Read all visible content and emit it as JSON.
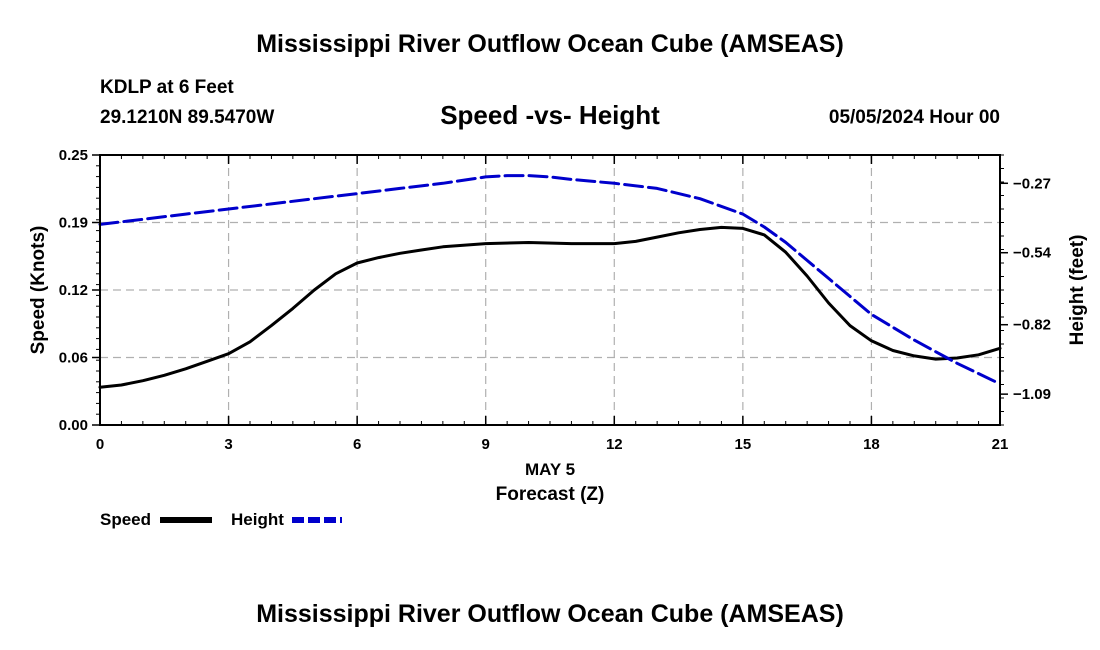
{
  "header": {
    "title": "Mississippi River Outflow Ocean Cube (AMSEAS)",
    "station": "KDLP at 6 Feet",
    "coords": "29.1210N  89.5470W",
    "subtitle": "Speed -vs- Height",
    "datetime": "05/05/2024 Hour 00"
  },
  "footer": {
    "title": "Mississippi River Outflow Ocean Cube (AMSEAS)"
  },
  "colors": {
    "speed": "#000000",
    "height": "#0000cc",
    "grid": "#b0b0b0"
  },
  "chart_data": {
    "type": "line",
    "xlabel": "Forecast (Z)",
    "xsublabel": "MAY 5",
    "ylabel": "Speed (Knots)",
    "y2label": "Height (feet)",
    "xlim": [
      0,
      21
    ],
    "ylim": [
      0,
      0.25
    ],
    "y2lim": [
      -1.21,
      -0.16
    ],
    "x_ticks": [
      0,
      3,
      6,
      9,
      12,
      15,
      18,
      21
    ],
    "x_tick_labels": [
      "0",
      "3",
      "6",
      "9",
      "12",
      "15",
      "18",
      "21"
    ],
    "y_ticks": [
      0,
      0.0625,
      0.125,
      0.1875,
      0.25
    ],
    "y_tick_labels": [
      "0.00",
      "0.06",
      "0.12",
      "0.19",
      "0.25"
    ],
    "y2_ticks": [
      -0.27,
      -0.54,
      -0.82,
      -1.09
    ],
    "y2_tick_labels": [
      "-0.27",
      "-0.54",
      "-0.82",
      "-1.09"
    ],
    "grid": true,
    "legend": [
      "Speed",
      "Height"
    ],
    "series": [
      {
        "name": "Speed",
        "axis": "left",
        "x": [
          0,
          0.5,
          1,
          1.5,
          2,
          2.5,
          3,
          3.5,
          4,
          4.5,
          5,
          5.5,
          6,
          6.5,
          7,
          7.5,
          8,
          9,
          10,
          11,
          12,
          12.5,
          13,
          13.5,
          14,
          14.5,
          15,
          15.5,
          16,
          16.5,
          17,
          17.5,
          18,
          18.5,
          19,
          19.5,
          20,
          20.5,
          21
        ],
        "y": [
          0.035,
          0.037,
          0.041,
          0.046,
          0.052,
          0.059,
          0.066,
          0.077,
          0.092,
          0.108,
          0.125,
          0.14,
          0.15,
          0.155,
          0.159,
          0.162,
          0.165,
          0.168,
          0.169,
          0.168,
          0.168,
          0.17,
          0.174,
          0.178,
          0.181,
          0.183,
          0.182,
          0.176,
          0.16,
          0.138,
          0.113,
          0.092,
          0.078,
          0.069,
          0.064,
          0.061,
          0.062,
          0.065,
          0.071
        ]
      },
      {
        "name": "Height",
        "axis": "right",
        "x": [
          0,
          1,
          2,
          3,
          4,
          5,
          6,
          7,
          8,
          9,
          9.5,
          10,
          10.5,
          11,
          12,
          13,
          14,
          15,
          15.5,
          16,
          16.5,
          17,
          17.5,
          18,
          19,
          20,
          21
        ],
        "y": [
          -0.43,
          -0.41,
          -0.39,
          -0.37,
          -0.35,
          -0.33,
          -0.31,
          -0.29,
          -0.27,
          -0.245,
          -0.24,
          -0.24,
          -0.245,
          -0.255,
          -0.27,
          -0.29,
          -0.33,
          -0.39,
          -0.44,
          -0.5,
          -0.57,
          -0.64,
          -0.71,
          -0.78,
          -0.88,
          -0.97,
          -1.05
        ]
      }
    ]
  }
}
